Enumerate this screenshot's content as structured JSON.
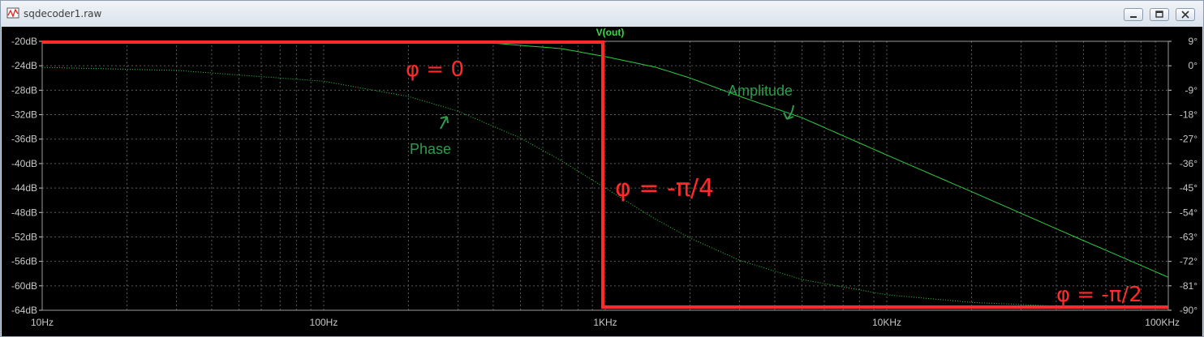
{
  "window": {
    "title": "sqdecoder1.raw",
    "icons": [
      "waveform-icon",
      "minimize-icon",
      "restore-icon",
      "close-icon"
    ]
  },
  "chart_data": {
    "type": "line",
    "title": "V(out)",
    "x_scale": "log",
    "xlim": [
      10,
      100000
    ],
    "x_ticks": [
      10,
      100,
      1000,
      10000,
      100000
    ],
    "x_tick_labels": [
      "10Hz",
      "100Hz",
      "1KHz",
      "10KHz",
      "100KHz"
    ],
    "ylim_left": [
      -64,
      -20
    ],
    "y_left_ticks": [
      -20,
      -24,
      -28,
      -32,
      -36,
      -40,
      -44,
      -48,
      -52,
      -56,
      -60,
      -64
    ],
    "y_left_tick_labels": [
      "-20dB",
      "-24dB",
      "-28dB",
      "-32dB",
      "-36dB",
      "-40dB",
      "-44dB",
      "-48dB",
      "-52dB",
      "-56dB",
      "-60dB",
      "-64dB"
    ],
    "ylim_right": [
      -90,
      9
    ],
    "y_right_ticks": [
      9,
      0,
      -9,
      -18,
      -27,
      -36,
      -45,
      -54,
      -63,
      -72,
      -81,
      -90
    ],
    "y_right_tick_labels": [
      "9°",
      "0°",
      "-9°",
      "-18°",
      "-27°",
      "-36°",
      "-45°",
      "-54°",
      "-63°",
      "-72°",
      "-81°",
      "-90°"
    ],
    "grid": true,
    "colors": {
      "background": "#000000",
      "grid": "#5a5a5a",
      "trace": "#2ecc40",
      "annotation": "#ff2a2a",
      "label": "#2e9c4c"
    },
    "series": [
      {
        "name": "Amplitude",
        "axis": "left",
        "line": "solid",
        "x": [
          10,
          100,
          200,
          400,
          700,
          1000,
          1500,
          2000,
          3000,
          5000,
          10000,
          20000,
          50000,
          100000
        ],
        "values": [
          -20.0,
          -20.0,
          -20.1,
          -20.3,
          -21.2,
          -22.5,
          -24.2,
          -26.0,
          -29.0,
          -32.5,
          -38.6,
          -44.6,
          -52.6,
          -58.6
        ]
      },
      {
        "name": "Phase",
        "axis": "right",
        "line": "dotted",
        "x": [
          10,
          30,
          100,
          200,
          300,
          500,
          700,
          1000,
          1500,
          2000,
          3000,
          5000,
          10000,
          20000,
          50000,
          100000
        ],
        "values": [
          -0.6,
          -1.7,
          -5.7,
          -11.3,
          -16.7,
          -26.6,
          -35.0,
          -45.0,
          -56.3,
          -63.4,
          -71.6,
          -78.7,
          -84.3,
          -87.1,
          -88.9,
          -89.4
        ]
      }
    ],
    "annotations": [
      {
        "text": "φ = 0",
        "kind": "handwritten"
      },
      {
        "text": "φ = -π/4",
        "kind": "handwritten"
      },
      {
        "text": "φ = -π/2",
        "kind": "handwritten"
      },
      {
        "text": "Amplitude",
        "kind": "label"
      },
      {
        "text": "Phase",
        "kind": "label"
      }
    ]
  }
}
